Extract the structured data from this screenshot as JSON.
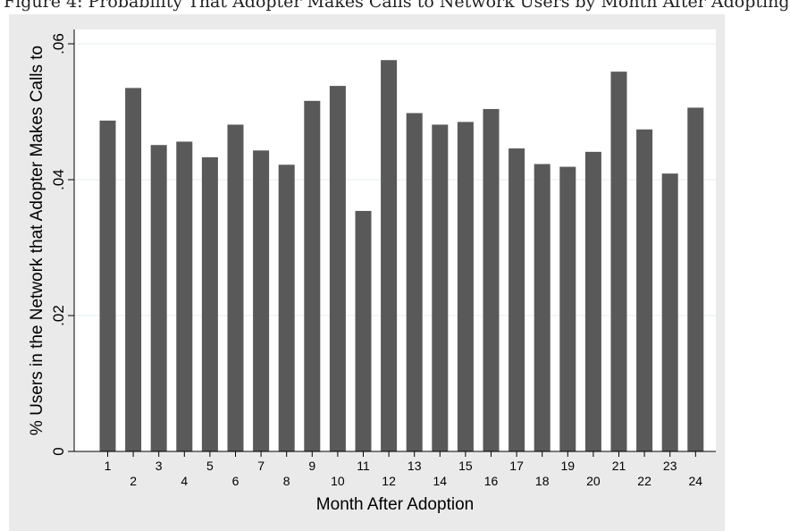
{
  "caption": "Figure 4: Probability That Adopter Makes Calls to Network Users by Month After Adopting",
  "chart_data": {
    "type": "bar",
    "categories": [
      "1",
      "2",
      "3",
      "4",
      "5",
      "6",
      "7",
      "8",
      "9",
      "10",
      "11",
      "12",
      "13",
      "14",
      "15",
      "16",
      "17",
      "18",
      "19",
      "20",
      "21",
      "22",
      "23",
      "24"
    ],
    "values": [
      0.0487,
      0.0535,
      0.0451,
      0.0456,
      0.0433,
      0.0481,
      0.0443,
      0.0422,
      0.0516,
      0.0538,
      0.0354,
      0.0576,
      0.0498,
      0.0481,
      0.0485,
      0.0504,
      0.0446,
      0.0423,
      0.0419,
      0.0441,
      0.0559,
      0.0474,
      0.0409,
      0.0506
    ],
    "xlabel": "Month After Adoption",
    "ylabel": "% Users in the Network that Adopter Makes Calls to",
    "ylim": [
      0,
      0.06
    ],
    "yticks": [
      0,
      0.02,
      0.04,
      0.06
    ],
    "ytick_labels": [
      "0",
      ".02",
      ".04",
      ".06"
    ],
    "grid": true,
    "bar_color": "#595959",
    "plot_background": "#ffffff",
    "outer_background": "#eaeaea"
  }
}
